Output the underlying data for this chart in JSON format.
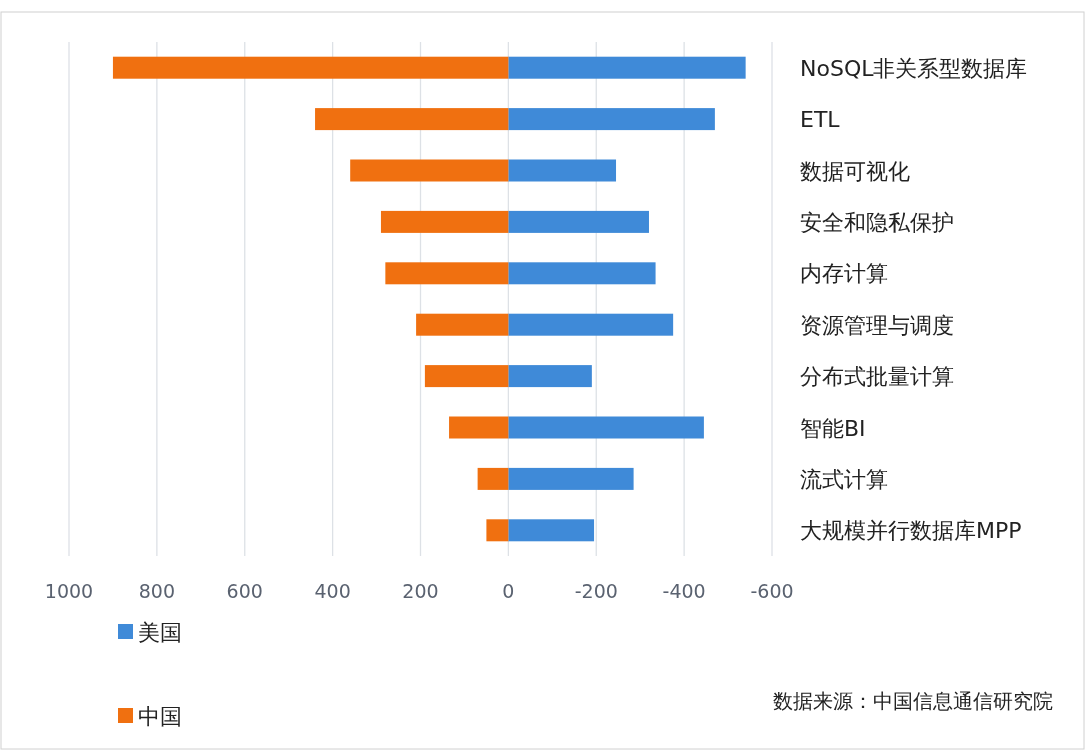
{
  "chart_data": {
    "type": "bar",
    "orientation": "horizontal",
    "categories": [
      "NoSQL非关系型数据库",
      "ETL",
      "数据可视化",
      "安全和隐私保护",
      "内存计算",
      "资源管理与调度",
      "分布式批量计算",
      "智能BI",
      "流式计算",
      "大规模并行数据库MPP"
    ],
    "series": [
      {
        "name": "美国",
        "color": "#3f8ad8",
        "values": [
          -540,
          -470,
          -245,
          -320,
          -335,
          -375,
          -190,
          -445,
          -285,
          -195
        ]
      },
      {
        "name": "中国",
        "color": "#f07010",
        "values": [
          900,
          440,
          360,
          290,
          280,
          210,
          190,
          135,
          70,
          50
        ]
      }
    ],
    "xlim": [
      1000,
      -600
    ],
    "xticks": [
      1000,
      800,
      600,
      400,
      200,
      0,
      -200,
      -400,
      -600
    ],
    "stacked": true,
    "grid": "x",
    "legend": "bottom left",
    "annotations": [
      "数据来源：中国信息通信研究院"
    ]
  }
}
